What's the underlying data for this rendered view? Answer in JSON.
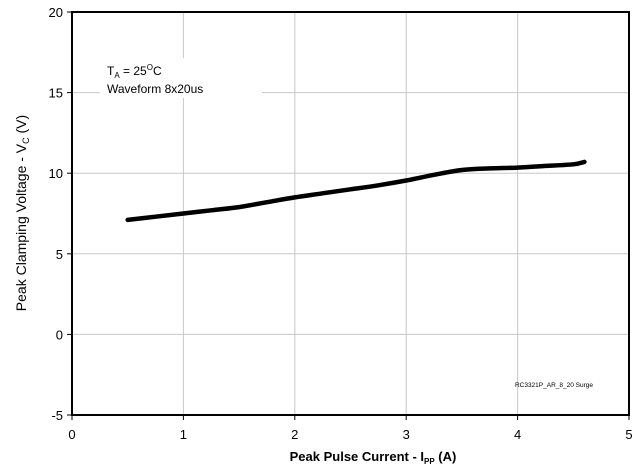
{
  "chart_data": {
    "type": "line",
    "title": "",
    "xlabel": {
      "main": "Peak Pulse Current - I",
      "sub": "PP",
      "unit": " (A)"
    },
    "ylabel": {
      "main": "Peak Clamping Voltage - V",
      "sub": "C",
      "unit": " (V)"
    },
    "xlim": [
      0,
      5
    ],
    "ylim": [
      -5,
      20
    ],
    "x_ticks": [
      "0",
      "1",
      "2",
      "3",
      "4",
      "5"
    ],
    "y_ticks": [
      "-5",
      "0",
      "5",
      "10",
      "15",
      "20"
    ],
    "grid": true,
    "series": [
      {
        "color": "#000000",
        "x": [
          0.5,
          0.75,
          1.0,
          1.25,
          1.5,
          1.75,
          2.0,
          2.25,
          2.5,
          2.75,
          3.0,
          3.25,
          3.5,
          3.75,
          4.0,
          4.25,
          4.5,
          4.6
        ],
        "y": [
          7.1,
          7.3,
          7.5,
          7.7,
          7.9,
          8.2,
          8.5,
          8.75,
          9.0,
          9.25,
          9.55,
          9.9,
          10.2,
          10.3,
          10.35,
          10.45,
          10.55,
          10.7
        ]
      }
    ],
    "annotations": {
      "temp": {
        "main": "T",
        "sub": "A",
        "rest": " = 25",
        "sup": "O",
        "unit": "C"
      },
      "waveform": "Waveform 8x20us",
      "ref_code": "RC3321P_AR_8_20 Surge"
    }
  }
}
